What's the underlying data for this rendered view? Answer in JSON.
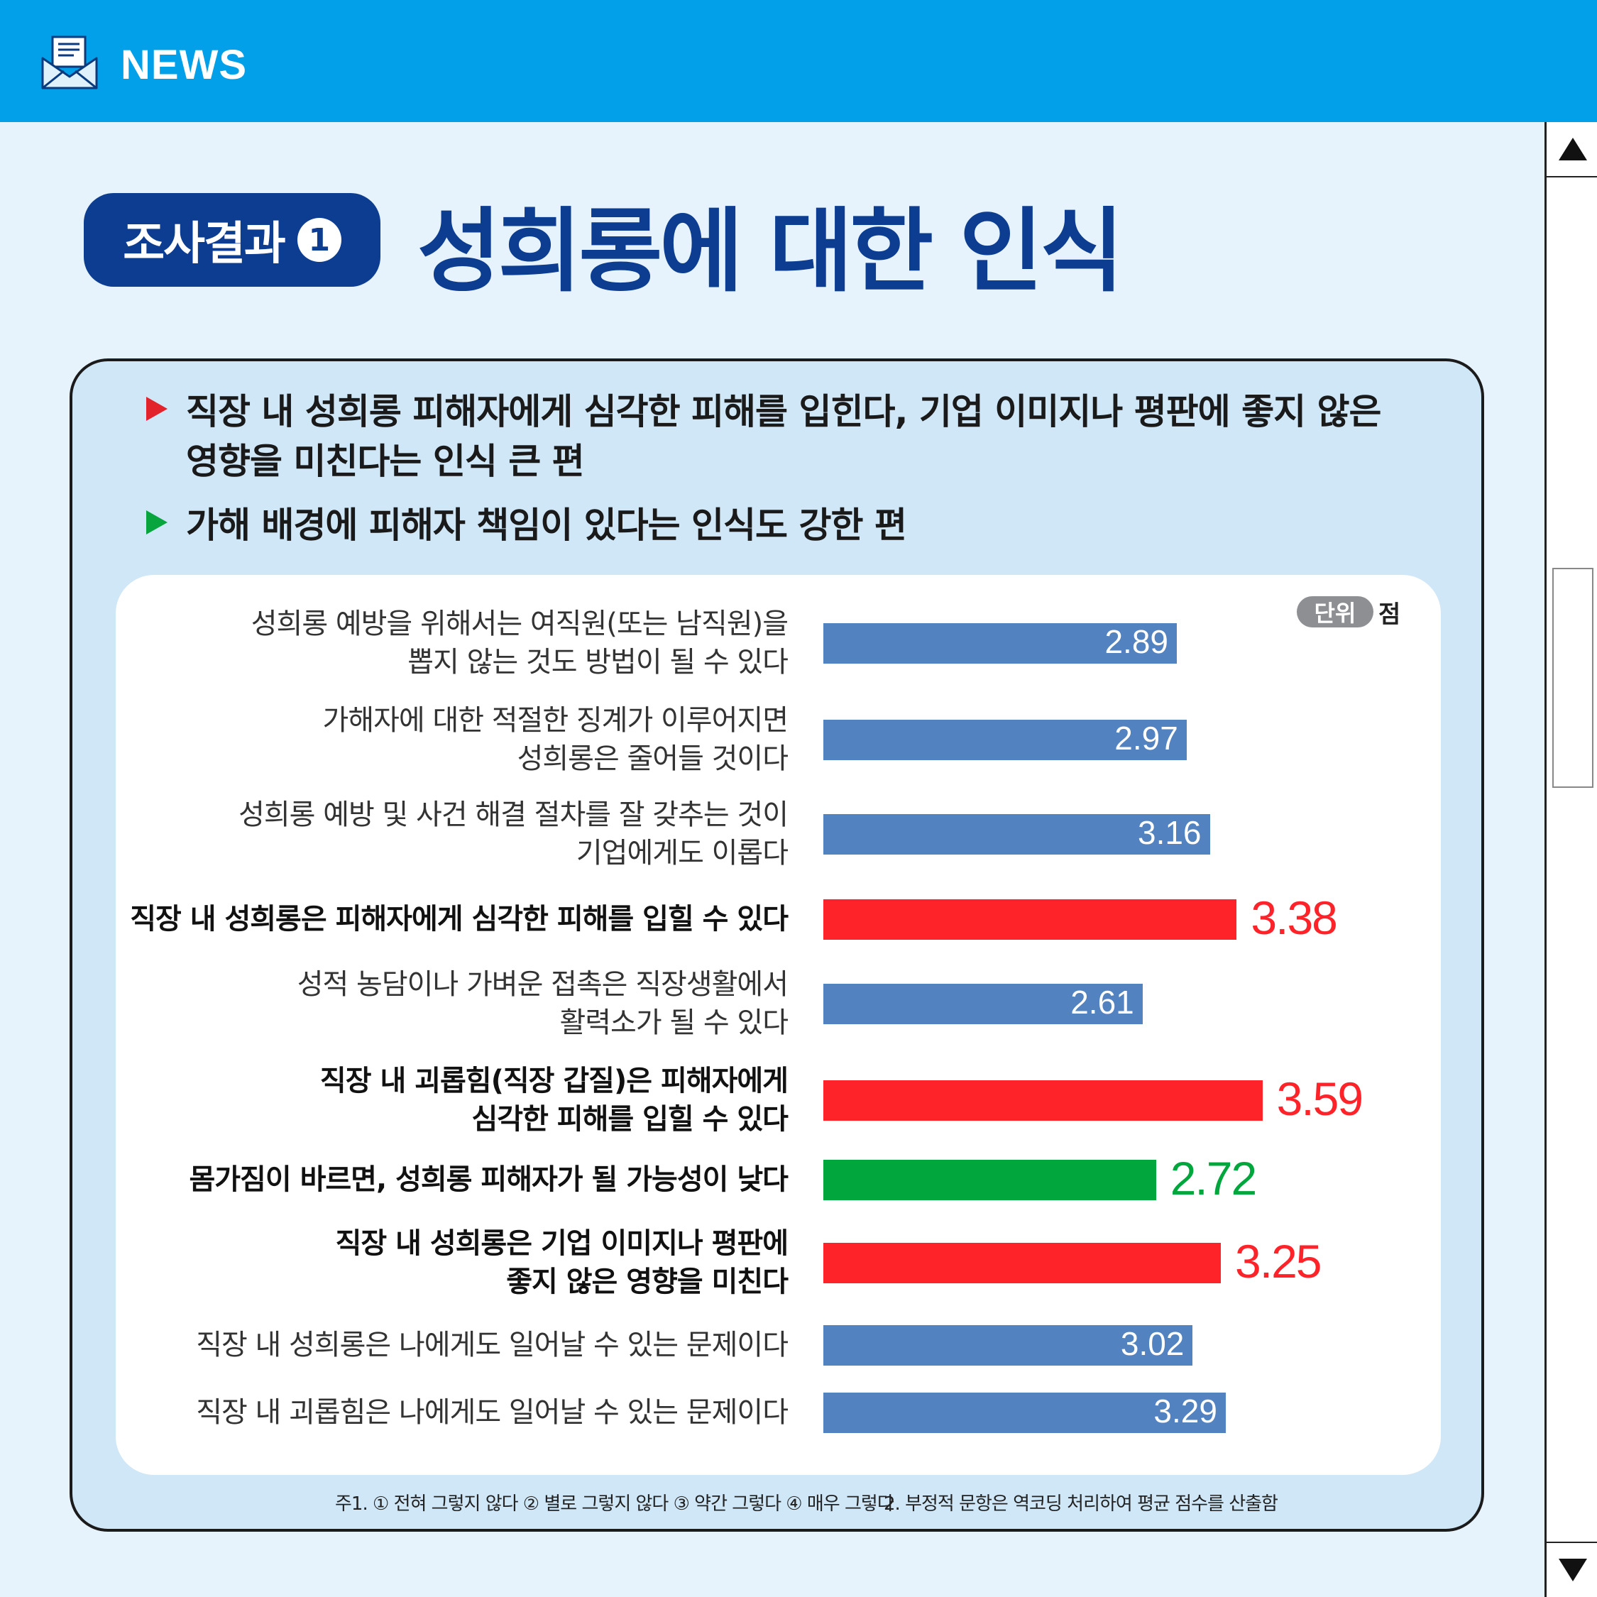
{
  "header": {
    "label": "NEWS",
    "icon": "envelope-newspaper-icon"
  },
  "section": {
    "label": "조사결과",
    "number": "1"
  },
  "title": "성희롱에 대한 인식",
  "bullets": [
    {
      "text": "직장 내 성희롱 피해자에게 심각한 피해를 입힌다, 기업 이미지나 평판에 좋지 않은 영향을 미친다는 인식 큰 편",
      "color": "#e3232b"
    },
    {
      "text": "가해 배경에 피해자 책임이 있다는 인식도 강한 편",
      "color": "#08a53f"
    }
  ],
  "unit": {
    "label": "단위",
    "value": "점"
  },
  "chart_data": {
    "type": "bar",
    "orientation": "horizontal",
    "title": "",
    "xlabel": "",
    "ylabel": "",
    "xlim": [
      0,
      4
    ],
    "grid": false,
    "legend": "none",
    "categories": [
      "성희롱 예방을 위해서는 여직원(또는 남직원)을\n뽑지 않는 것도 방법이 될 수 있다",
      "가해자에 대한 적절한 징계가 이루어지면\n성희롱은 줄어들 것이다",
      "성희롱 예방 및 사건 해결 절차를 잘 갖추는 것이\n기업에게도 이롭다",
      "직장 내 성희롱은 피해자에게 심각한 피해를 입힐 수 있다",
      "성적 농담이나 가벼운 접촉은 직장생활에서\n활력소가 될 수 있다",
      "직장 내 괴롭힘(직장 갑질)은 피해자에게\n심각한 피해를 입힐 수 있다",
      "몸가짐이 바르면, 성희롱 피해자가 될 가능성이 낮다",
      "직장 내 성희롱은 기업 이미지나 평판에\n좋지 않은 영향을 미친다",
      "직장 내 성희롱은 나에게도 일어날 수 있는 문제이다",
      "직장 내 괴롭힘은 나에게도 일어날 수 있는 문제이다"
    ],
    "values": [
      2.89,
      2.97,
      3.16,
      3.38,
      2.61,
      3.59,
      2.72,
      3.25,
      3.02,
      3.29
    ],
    "value_labels": [
      "2.89",
      "2.97",
      "3.16",
      "3.38",
      "2.61",
      "3.59",
      "2.72",
      "3.25",
      "3.02",
      "3.29"
    ],
    "highlight": [
      "normal",
      "normal",
      "normal",
      "red",
      "normal",
      "red",
      "green",
      "red",
      "normal",
      "normal"
    ],
    "colors": {
      "normal": "#5282bf",
      "red": "#fe2229",
      "green": "#01a63d"
    }
  },
  "footnotes": [
    "주1. ① 전혀 그렇지 않다 ② 별로 그렇지 않다 ③ 약간 그렇다 ④ 매우 그렇다",
    "2. 부정적 문항은 역코딩 처리하여 평균 점수를 산출함"
  ]
}
